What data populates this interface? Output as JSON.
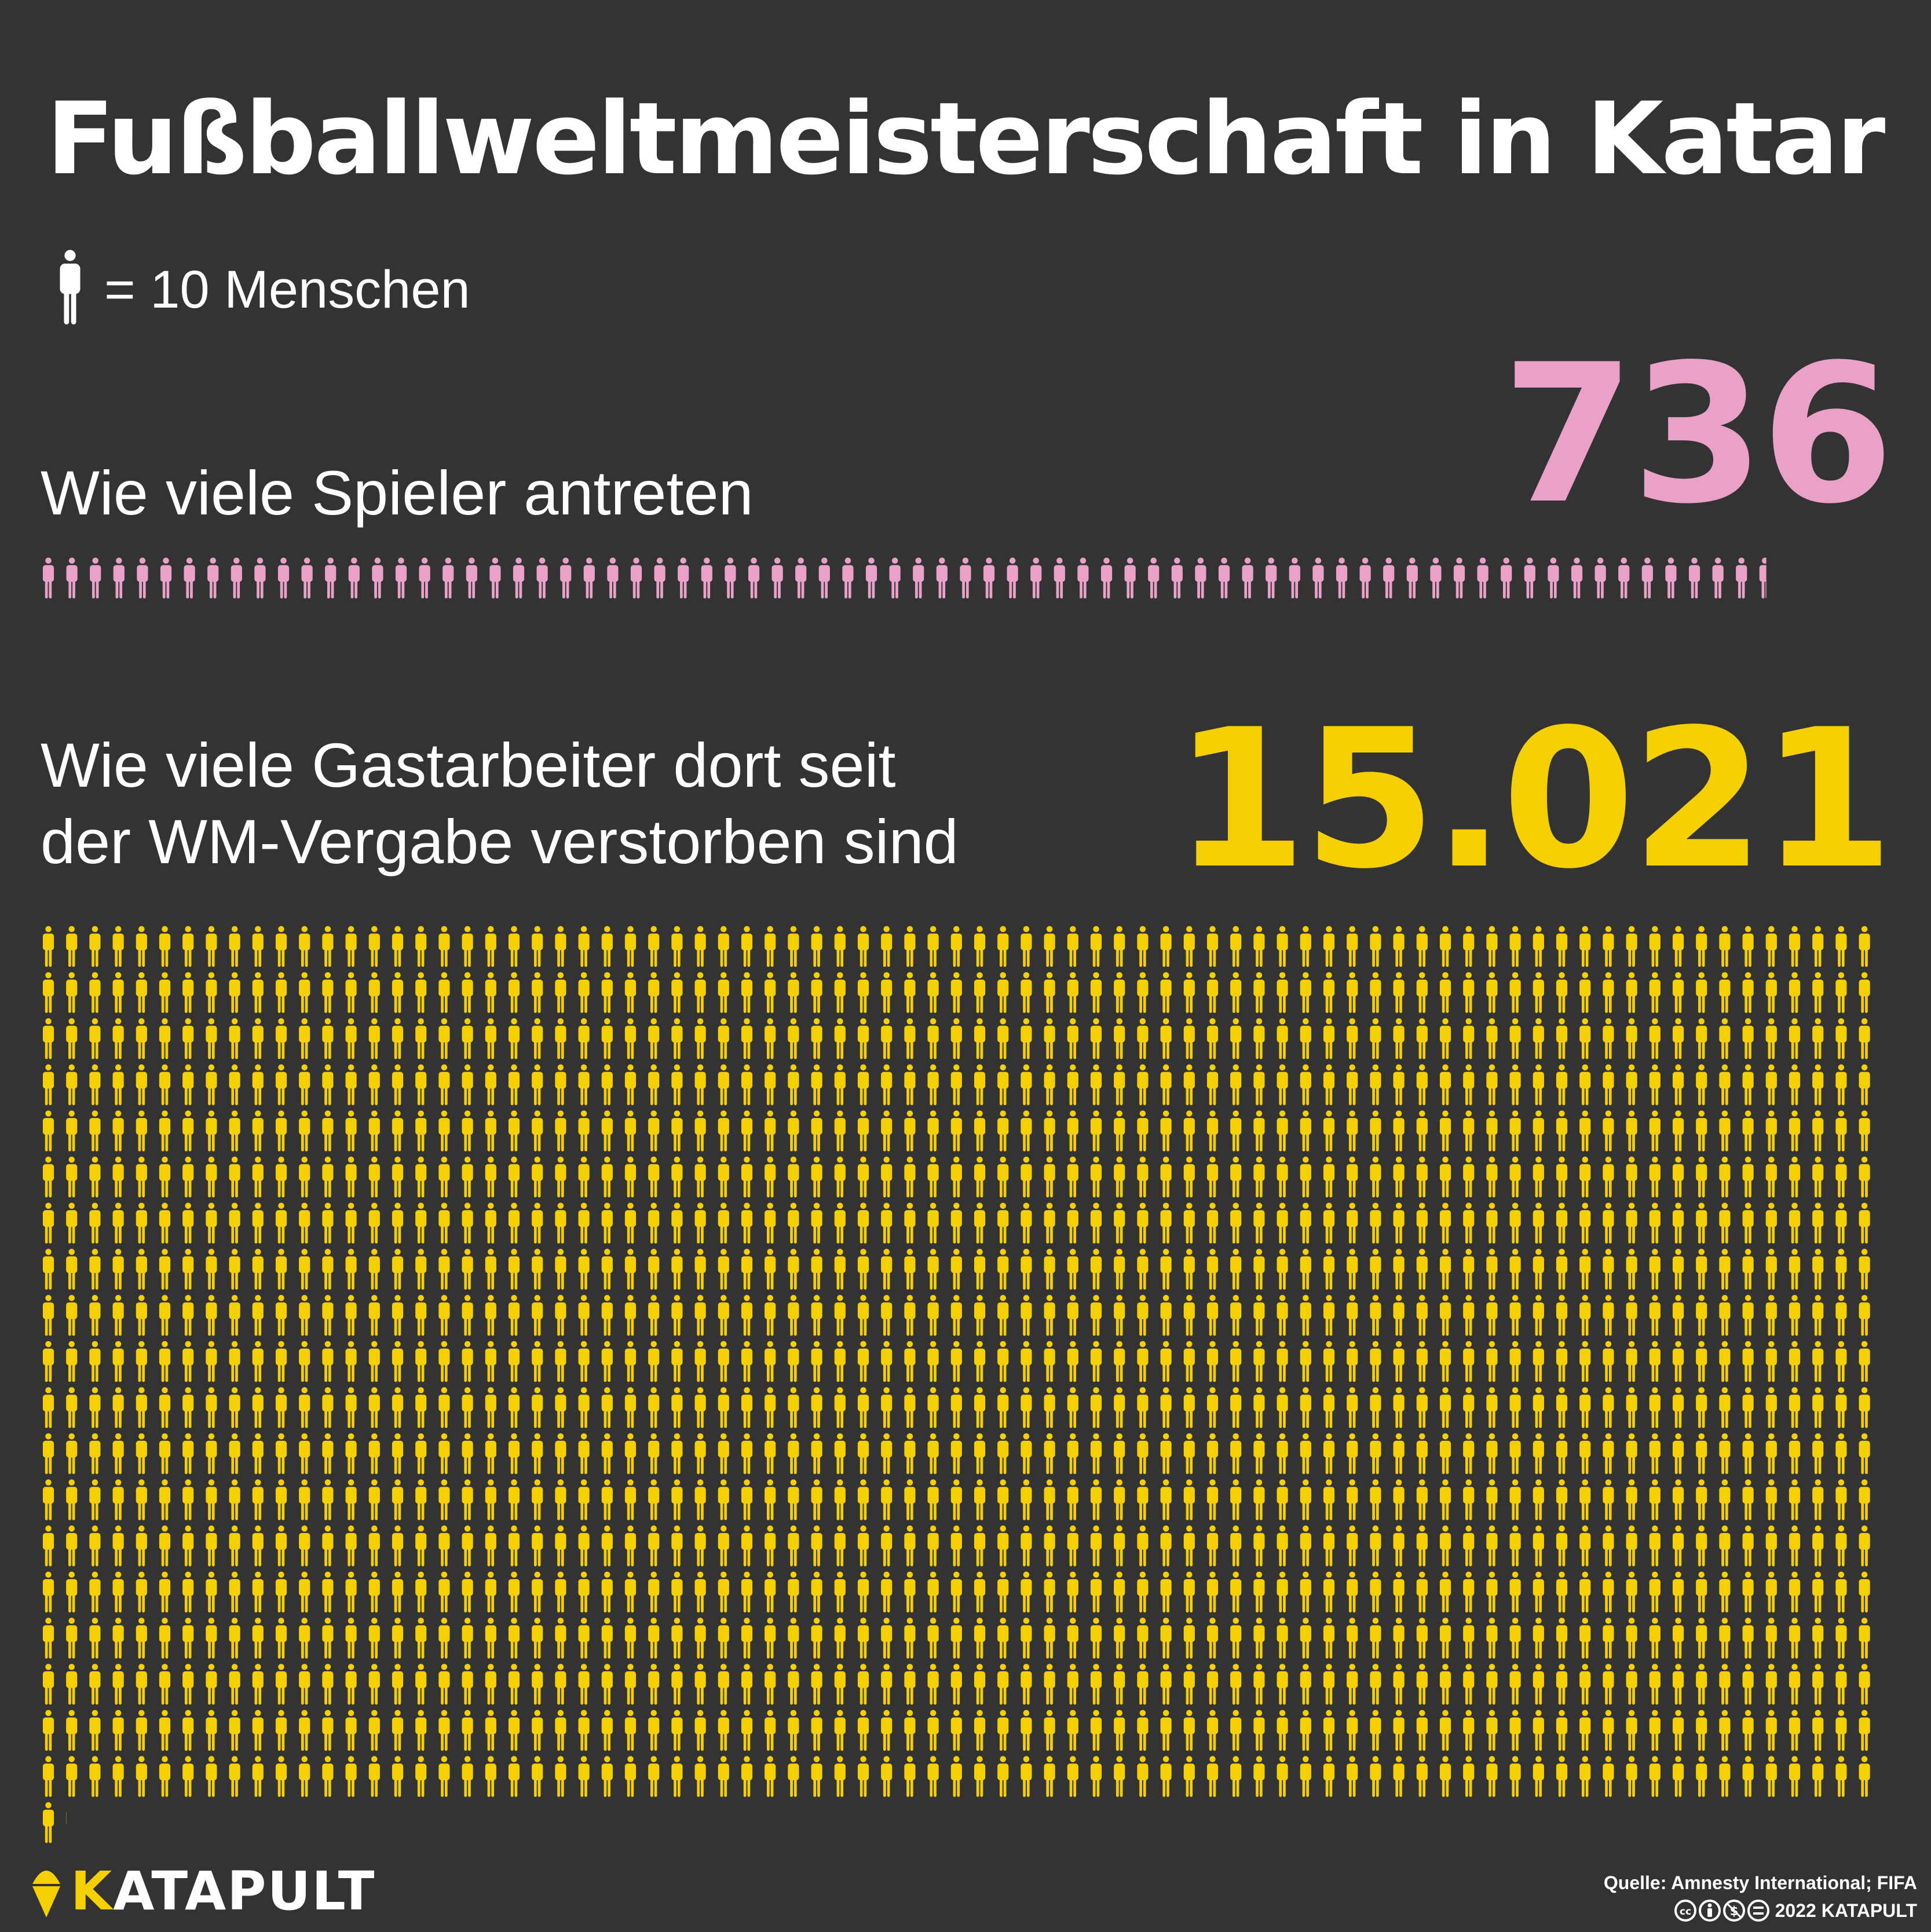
{
  "title": "Fußballweltmeisterschaft in Katar",
  "legend": {
    "icon": "person-icon",
    "text": "= 10 Menschen"
  },
  "colors": {
    "background": "#333333",
    "players": "#e9a1c8",
    "workers": "#f5d000",
    "text": "#ffffff"
  },
  "chart_data": {
    "type": "pictogram",
    "unit": "1 icon = 10 Menschen",
    "series": [
      {
        "label": "Wie viele Spieler antreten",
        "value": 736,
        "value_label": "736",
        "color": "#e9a1c8"
      },
      {
        "label_lines": [
          "Wie viele Gastarbeiter dort seit",
          "der WM-Vergabe verstorben sind"
        ],
        "value": 15021,
        "value_label": "15.021",
        "color": "#f5d000"
      }
    ]
  },
  "footer": {
    "brand_first": "K",
    "brand_rest": "ATAPULT",
    "source": "Quelle: Amnesty International; FIFA",
    "license_icons": [
      "cc-icon",
      "by-icon",
      "nc-icon",
      "nd-icon"
    ],
    "copyright": "2022 KATAPULT"
  }
}
